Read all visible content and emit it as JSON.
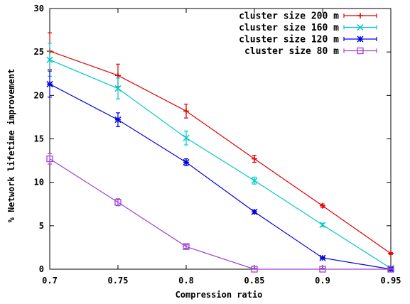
{
  "chart_data": {
    "type": "line",
    "title": "",
    "xlabel": "Compression ratio",
    "ylabel": "% Network lifetime improvement",
    "xlim": [
      0.7,
      0.95
    ],
    "ylim": [
      0,
      30
    ],
    "x_ticks": [
      "0.7",
      "0.75",
      "0.8",
      "0.85",
      "0.9",
      "0.95"
    ],
    "y_ticks": [
      "0",
      "5",
      "10",
      "15",
      "20",
      "25",
      "30"
    ],
    "grid": false,
    "legend_position": "top-right",
    "series": [
      {
        "name": "cluster size 200 m",
        "color": "#e00000",
        "marker": "plus",
        "x": [
          0.7,
          0.75,
          0.8,
          0.85,
          0.9,
          0.95
        ],
        "y": [
          25.1,
          22.3,
          18.2,
          12.7,
          7.3,
          1.8
        ],
        "err": [
          2.1,
          1.3,
          0.8,
          0.4,
          0.2,
          0.1
        ]
      },
      {
        "name": "cluster size 160 m",
        "color": "#00c8c8",
        "marker": "x",
        "x": [
          0.7,
          0.75,
          0.8,
          0.85,
          0.9,
          0.95
        ],
        "y": [
          24.1,
          20.8,
          15.1,
          10.2,
          5.1,
          0.1
        ],
        "err": [
          1.9,
          1.2,
          0.8,
          0.4,
          0.2,
          0.1
        ]
      },
      {
        "name": "cluster size 120 m",
        "color": "#0000e0",
        "marker": "star",
        "x": [
          0.7,
          0.75,
          0.8,
          0.85,
          0.9,
          0.95
        ],
        "y": [
          21.3,
          17.2,
          12.3,
          6.6,
          1.3,
          0.0
        ],
        "err": [
          1.5,
          0.8,
          0.4,
          0.2,
          0.1,
          0.1
        ]
      },
      {
        "name": "cluster size 80 m",
        "color": "#a040d0",
        "marker": "square",
        "x": [
          0.7,
          0.75,
          0.8,
          0.85,
          0.9,
          0.95
        ],
        "y": [
          12.7,
          7.7,
          2.6,
          0.0,
          0.0,
          0.0
        ],
        "err": [
          0.6,
          0.4,
          0.2,
          0.1,
          0.1,
          0.1
        ]
      }
    ]
  }
}
